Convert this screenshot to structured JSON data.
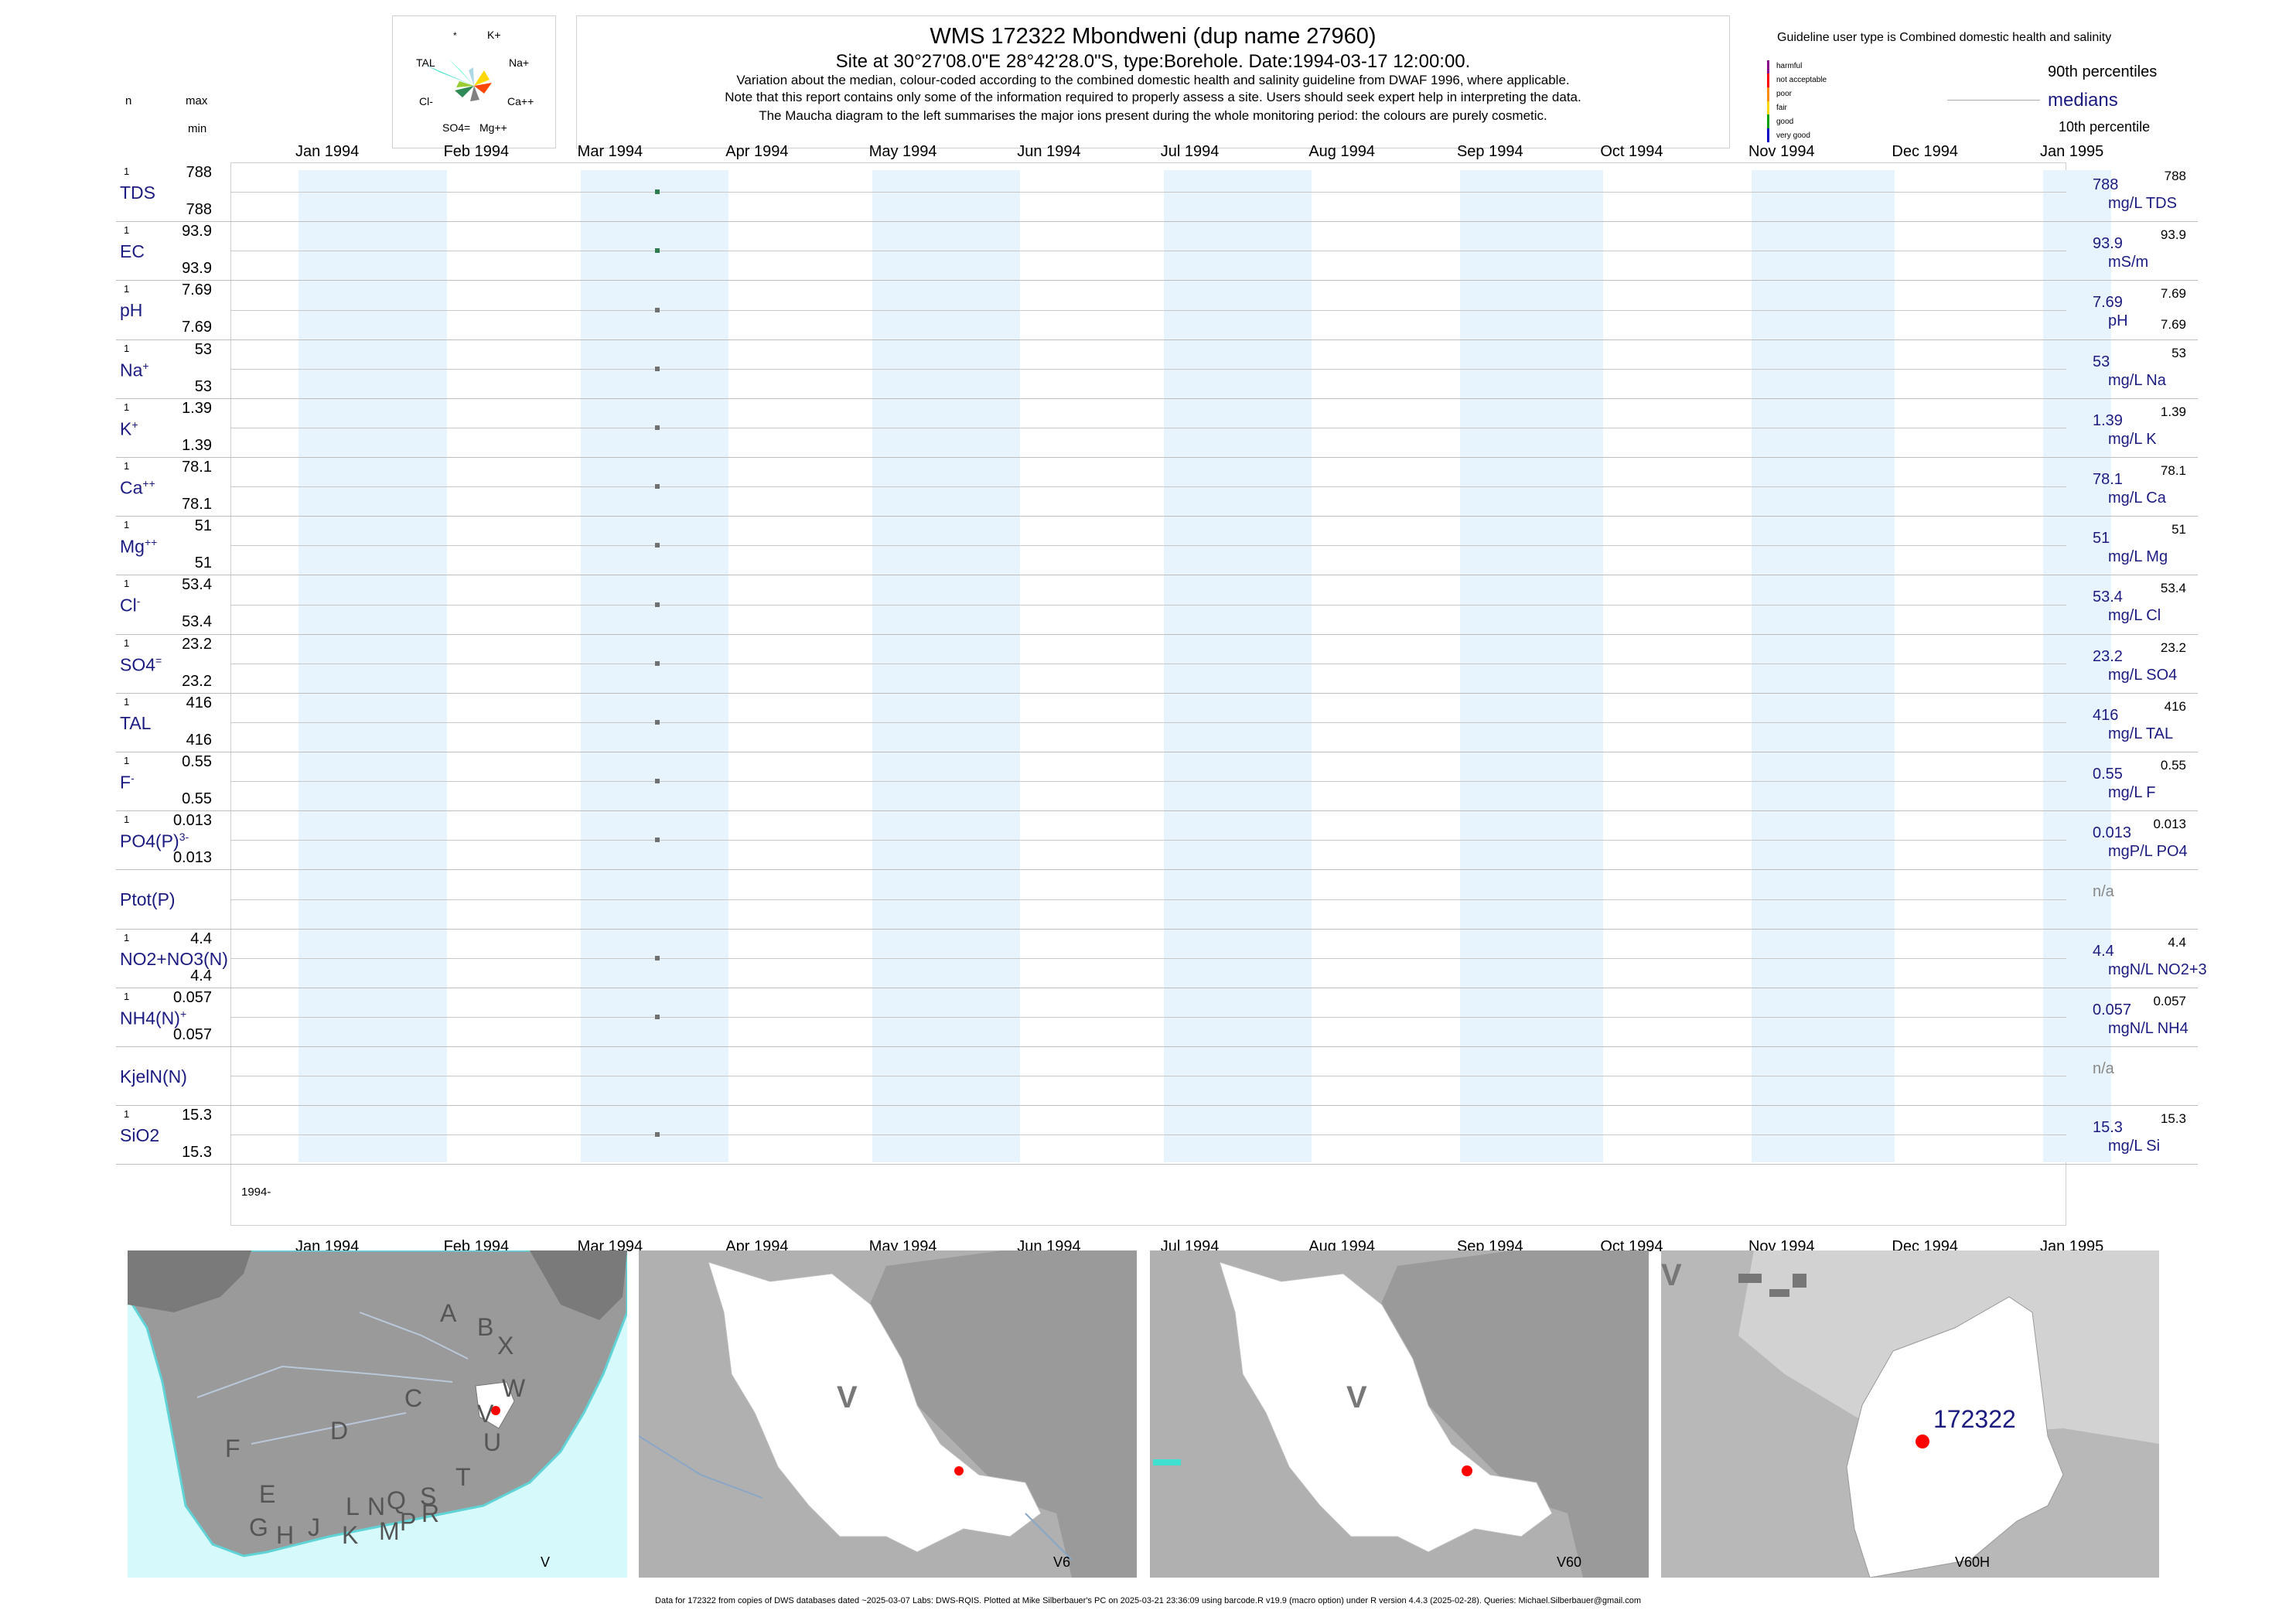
{
  "header": {
    "title": "WMS 172322  Mbondweni (dup name 27960)",
    "subtitle": "Site at 30°27'08.0\"E 28°42'28.0\"S, type:Borehole. Date:1994-03-17 12:00:00.",
    "note1": "Variation about the median,  colour-coded according to the combined domestic health and salinity guideline from DWAF 1996, where applicable.",
    "note2": "Note that this report contains only some of the information required to properly assess a site. Users should seek expert help in interpreting the data.",
    "note3": "The Maucha diagram to the left summarises the major ions present during the whole monitoring period: the colours are purely cosmetic."
  },
  "maucha": {
    "star": "*",
    "k": "K+",
    "tal": "TAL",
    "na": "Na+",
    "cl": "Cl-",
    "ca": "Ca++",
    "so4": "SO4=",
    "mg": "Mg++"
  },
  "left_header": {
    "n": "n",
    "max": "max",
    "min": "min"
  },
  "guideline": {
    "title": "Guideline user type is Combined domestic health and salinity",
    "p90": "90th percentiles",
    "medians": "medians",
    "p10": "10th percentile",
    "classes": [
      {
        "label": "harmful",
        "color": "#8b008b"
      },
      {
        "label": "not acceptable",
        "color": "#ff0000"
      },
      {
        "label": "poor",
        "color": "#ff8c00"
      },
      {
        "label": "fair",
        "color": "#ffd700"
      },
      {
        "label": "good",
        "color": "#00a000"
      },
      {
        "label": "very good",
        "color": "#0000c0"
      }
    ]
  },
  "months": [
    "Jan 1994",
    "Feb 1994",
    "Mar 1994",
    "Apr 1994",
    "May 1994",
    "Jun 1994",
    "Jul 1994",
    "Aug 1994",
    "Sep 1994",
    "Oct 1994",
    "Nov 1994",
    "Dec 1994",
    "Jan 1995"
  ],
  "year_label": "1994-",
  "chart_data": {
    "type": "scatter",
    "x_range": [
      "1994-01-01",
      "1995-01-01"
    ],
    "sample_date": "1994-03-17",
    "variables": [
      {
        "name": "TDS",
        "sup": "",
        "n": "1",
        "max": "788",
        "min": "788",
        "median": "788",
        "p90": "788",
        "p10": "",
        "unit": "mg/L TDS",
        "value": 788,
        "color": "#2e7d4f"
      },
      {
        "name": "EC",
        "sup": "",
        "n": "1",
        "max": "93.9",
        "min": "93.9",
        "median": "93.9",
        "p90": "93.9",
        "p10": "",
        "unit": "mS/m",
        "value": 93.9,
        "color": "#2e7d4f"
      },
      {
        "name": "pH",
        "sup": "",
        "n": "1",
        "max": "7.69",
        "min": "7.69",
        "median": "7.69",
        "p90": "7.69",
        "p10": "7.69",
        "unit": "pH",
        "value": 7.69,
        "color": "#707070"
      },
      {
        "name": "Na",
        "sup": "+",
        "n": "1",
        "max": "53",
        "min": "53",
        "median": "53",
        "p90": "53",
        "p10": "",
        "unit": "mg/L Na",
        "value": 53,
        "color": "#707070"
      },
      {
        "name": "K",
        "sup": "+",
        "n": "1",
        "max": "1.39",
        "min": "1.39",
        "median": "1.39",
        "p90": "1.39",
        "p10": "",
        "unit": "mg/L K",
        "value": 1.39,
        "color": "#707070"
      },
      {
        "name": "Ca",
        "sup": "++",
        "n": "1",
        "max": "78.1",
        "min": "78.1",
        "median": "78.1",
        "p90": "78.1",
        "p10": "",
        "unit": "mg/L Ca",
        "value": 78.1,
        "color": "#707070"
      },
      {
        "name": "Mg",
        "sup": "++",
        "n": "1",
        "max": "51",
        "min": "51",
        "median": "51",
        "p90": "51",
        "p10": "",
        "unit": "mg/L Mg",
        "value": 51,
        "color": "#707070"
      },
      {
        "name": "Cl",
        "sup": "-",
        "n": "1",
        "max": "53.4",
        "min": "53.4",
        "median": "53.4",
        "p90": "53.4",
        "p10": "",
        "unit": "mg/L Cl",
        "value": 53.4,
        "color": "#707070"
      },
      {
        "name": "SO4",
        "sup": "=",
        "n": "1",
        "max": "23.2",
        "min": "23.2",
        "median": "23.2",
        "p90": "23.2",
        "p10": "",
        "unit": "mg/L SO4",
        "value": 23.2,
        "color": "#707070"
      },
      {
        "name": "TAL",
        "sup": "",
        "n": "1",
        "max": "416",
        "min": "416",
        "median": "416",
        "p90": "416",
        "p10": "",
        "unit": "mg/L TAL",
        "value": 416,
        "color": "#707070"
      },
      {
        "name": "F",
        "sup": "-",
        "n": "1",
        "max": "0.55",
        "min": "0.55",
        "median": "0.55",
        "p90": "0.55",
        "p10": "",
        "unit": "mg/L F",
        "value": 0.55,
        "color": "#707070"
      },
      {
        "name": "PO4(P)",
        "sup": "3-",
        "n": "1",
        "max": "0.013",
        "min": "0.013",
        "median": "0.013",
        "p90": "0.013",
        "p10": "",
        "unit": "mgP/L PO4",
        "value": 0.013,
        "color": "#707070"
      },
      {
        "name": "Ptot(P)",
        "sup": "",
        "n": "",
        "max": "",
        "min": "",
        "median": "n/a",
        "p90": "",
        "p10": "",
        "unit": "",
        "value": null,
        "color": "#707070"
      },
      {
        "name": "NO2+NO3(N)",
        "sup": "",
        "n": "1",
        "max": "4.4",
        "min": "4.4",
        "median": "4.4",
        "p90": "4.4",
        "p10": "",
        "unit": "mgN/L NO2+3",
        "value": 4.4,
        "color": "#707070"
      },
      {
        "name": "NH4(N)",
        "sup": "+",
        "n": "1",
        "max": "0.057",
        "min": "0.057",
        "median": "0.057",
        "p90": "0.057",
        "p10": "",
        "unit": "mgN/L NH4",
        "value": 0.057,
        "color": "#707070"
      },
      {
        "name": "KjelN(N)",
        "sup": "",
        "n": "",
        "max": "",
        "min": "",
        "median": "n/a",
        "p90": "",
        "p10": "",
        "unit": "",
        "value": null,
        "color": "#707070"
      },
      {
        "name": "SiO2",
        "sup": "",
        "n": "1",
        "max": "15.3",
        "min": "15.3",
        "median": "15.3",
        "p90": "15.3",
        "p10": "",
        "unit": "mg/L Si",
        "value": 15.3,
        "color": "#707070"
      }
    ]
  },
  "maps": {
    "map1_letters": [
      "A",
      "B",
      "X",
      "W",
      "C",
      "V",
      "D",
      "U",
      "F",
      "T",
      "E",
      "L",
      "N",
      "Q",
      "S",
      "R",
      "G",
      "H",
      "J",
      "K",
      "M",
      "P"
    ],
    "map1_caption": "V",
    "map2_letter": "V",
    "map2_caption": "V6",
    "map3_letter": "V",
    "map3_caption": "V60",
    "map4_letter": "V",
    "map4_caption": "V60H",
    "map4_site": "172322"
  },
  "footer": "Data for 172322 from copies of DWS databases dated ~2025-03-07 Labs: DWS-RQIS. Plotted at Mike Silberbauer's PC on 2025-03-21 23:36:09 using barcode.R v19.9 (macro option) under R version 4.4.3 (2025-02-28). Queries: Michael.Silberbauer@gmail.com"
}
